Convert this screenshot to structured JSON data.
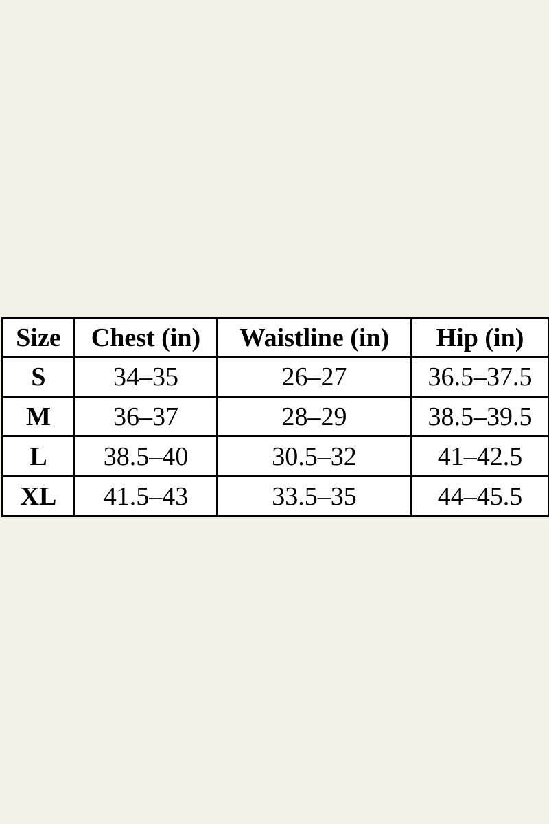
{
  "chart_data": {
    "type": "table",
    "columns": [
      "Size",
      "Chest (in)",
      "Waistline (in)",
      "Hip (in)"
    ],
    "rows": [
      [
        "S",
        "34–35",
        "26–27",
        "36.5–37.5"
      ],
      [
        "M",
        "36–37",
        "28–29",
        "38.5–39.5"
      ],
      [
        "L",
        "38.5–40",
        "30.5–32",
        "41–42.5"
      ],
      [
        "XL",
        "41.5–43",
        "33.5–35",
        "44–45.5"
      ]
    ]
  },
  "colors": {
    "page_background": "#f4f1e8",
    "cell_background": "#ffffff",
    "border": "#000000",
    "text": "#000000"
  }
}
